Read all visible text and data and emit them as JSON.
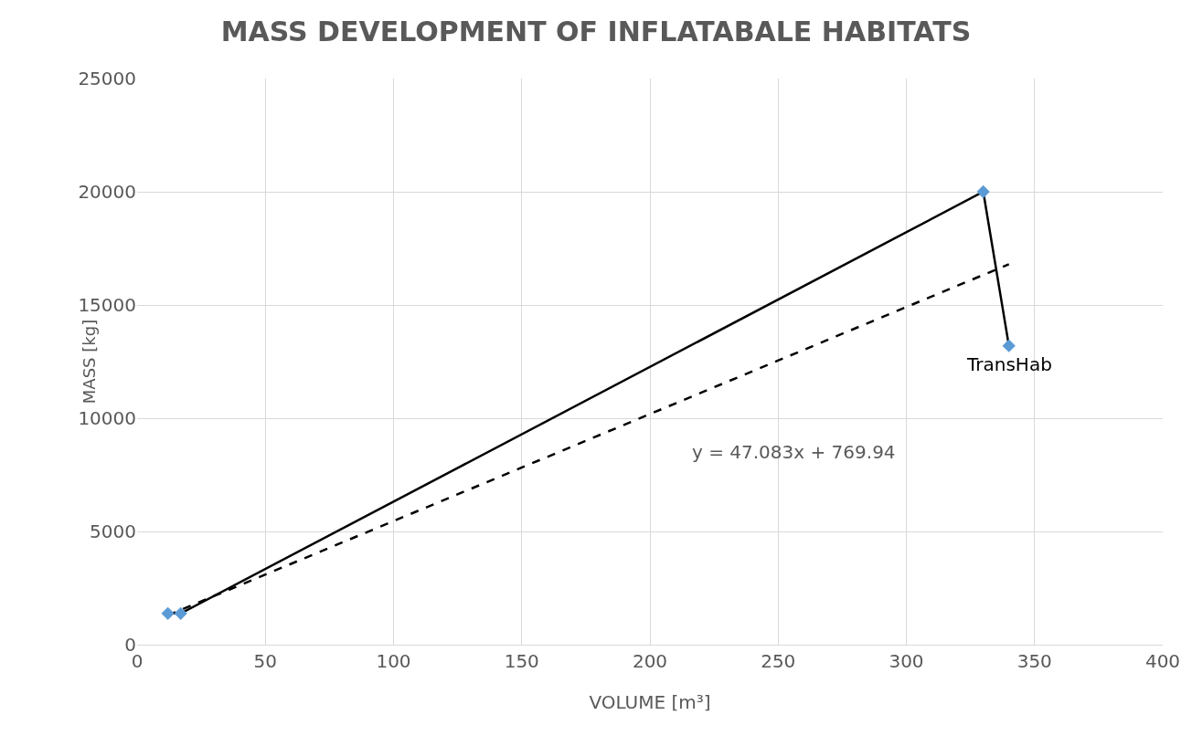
{
  "chart_data": {
    "type": "scatter",
    "title": "MASS DEVELOPMENT OF INFLATABALE HABITATS",
    "xlabel": "VOLUME [m³]",
    "ylabel": "MASS [kg]",
    "series": [
      {
        "type": "line",
        "x": [
          12,
          17,
          330,
          340
        ],
        "values": [
          1380,
          1380,
          20000,
          13200
        ],
        "color": "#000000",
        "marker": "none",
        "line_style": "solid"
      },
      {
        "type": "line",
        "x": [
          12,
          340
        ],
        "values": [
          1300,
          16800
        ],
        "color": "#000000",
        "marker": "none",
        "line_style": "dashed"
      },
      {
        "x": [
          12,
          17,
          330,
          340
        ],
        "values": [
          1380,
          1380,
          20000,
          13200
        ],
        "color": "#5b9bd5",
        "marker": "diamond"
      }
    ],
    "annotations": [
      "y = 47.083x + 769.94",
      {
        "text": "TransHab",
        "x": 340,
        "y": 13200
      }
    ],
    "xlim": [
      0,
      400
    ],
    "xticks": [
      0,
      50,
      100,
      150,
      200,
      250,
      300,
      350,
      400
    ],
    "ylim": [
      0,
      25000
    ],
    "yticks": [
      0,
      5000,
      10000,
      15000,
      20000,
      25000
    ],
    "grid": true
  }
}
